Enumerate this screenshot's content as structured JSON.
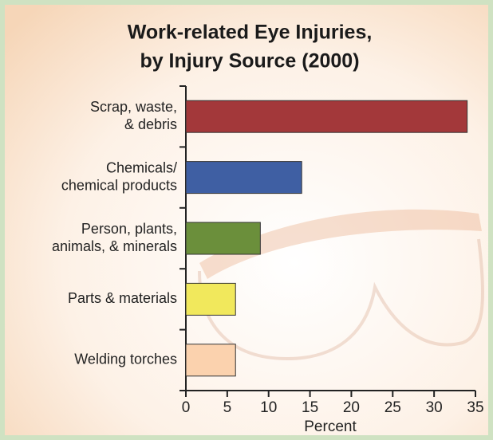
{
  "chart_data": {
    "type": "bar",
    "orientation": "horizontal",
    "title": [
      "Work-related Eye Injuries,",
      "by Injury Source (2000)"
    ],
    "categories": [
      [
        "Scrap, waste,",
        "& debris"
      ],
      [
        "Chemicals/",
        "chemical products"
      ],
      [
        "Person, plants,",
        "animals, & minerals"
      ],
      [
        "Parts & materials"
      ],
      [
        "Welding torches"
      ]
    ],
    "values": [
      34,
      14,
      9,
      6,
      6
    ],
    "colors": [
      "#a3383a",
      "#3f5fa3",
      "#6b8f3b",
      "#f1e85c",
      "#fbd2ae"
    ],
    "xlabel": "Percent",
    "xlim": [
      0,
      35
    ],
    "xticks": [
      0,
      5,
      10,
      15,
      20,
      25,
      30,
      35
    ],
    "grid": false
  }
}
